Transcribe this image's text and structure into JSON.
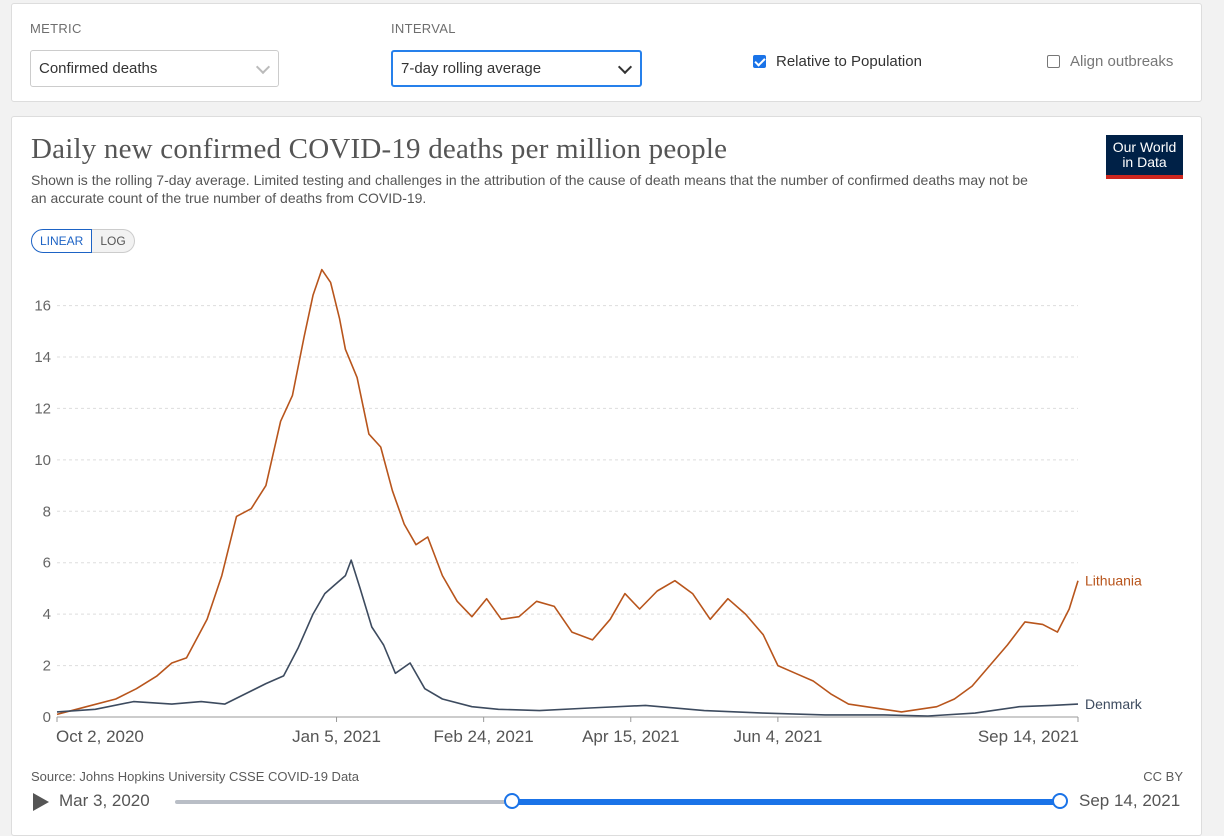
{
  "controls": {
    "metric_label": "METRIC",
    "metric_value": "Confirmed deaths",
    "interval_label": "INTERVAL",
    "interval_value": "7-day rolling average",
    "relative_label": "Relative to Population",
    "relative_checked": true,
    "align_label": "Align outbreaks",
    "align_checked": false
  },
  "chart": {
    "title": "Daily new confirmed COVID-19 deaths per million people",
    "subtitle": "Shown is the rolling 7-day average. Limited testing and challenges in the attribution of the cause of death means that the number of confirmed deaths may not be an accurate count of the true number of deaths from COVID-19.",
    "logo_line1": "Our World",
    "logo_line2": "in Data",
    "scale_linear": "LINEAR",
    "scale_log": "LOG",
    "source": "Source: Johns Hopkins University CSSE COVID-19 Data",
    "license": "CC BY"
  },
  "timeline": {
    "start_label": "Mar 3, 2020",
    "end_label": "Sep 14, 2021"
  },
  "colors": {
    "lithuania": "#b8551c",
    "denmark": "#3d4b5f",
    "accent": "#1a73e8"
  },
  "chart_data": {
    "type": "line",
    "title": "Daily new confirmed COVID-19 deaths per million people",
    "xlabel": "",
    "ylabel": "",
    "ylim": [
      0,
      17.5
    ],
    "yticks": [
      0,
      2,
      4,
      6,
      8,
      10,
      12,
      14,
      16
    ],
    "xlim": [
      "2020-10-02",
      "2021-09-14"
    ],
    "xticks": [
      "Oct 2, 2020",
      "Jan 5, 2021",
      "Feb 24, 2021",
      "Apr 15, 2021",
      "Jun 4, 2021",
      "Sep 14, 2021"
    ],
    "x_tick_dates": [
      "2020-10-02",
      "2021-01-05",
      "2021-02-24",
      "2021-04-15",
      "2021-06-04",
      "2021-09-14"
    ],
    "grid": true,
    "series": [
      {
        "name": "Lithuania",
        "color": "#b8551c",
        "points": [
          [
            "2020-10-02",
            0.1
          ],
          [
            "2020-10-12",
            0.4
          ],
          [
            "2020-10-22",
            0.7
          ],
          [
            "2020-10-29",
            1.1
          ],
          [
            "2020-11-05",
            1.6
          ],
          [
            "2020-11-10",
            2.1
          ],
          [
            "2020-11-15",
            2.3
          ],
          [
            "2020-11-22",
            3.8
          ],
          [
            "2020-11-27",
            5.5
          ],
          [
            "2020-12-02",
            7.8
          ],
          [
            "2020-12-07",
            8.1
          ],
          [
            "2020-12-12",
            9.0
          ],
          [
            "2020-12-17",
            11.5
          ],
          [
            "2020-12-21",
            12.5
          ],
          [
            "2020-12-25",
            14.8
          ],
          [
            "2020-12-28",
            16.4
          ],
          [
            "2020-12-31",
            17.4
          ],
          [
            "2021-01-03",
            16.9
          ],
          [
            "2021-01-06",
            15.5
          ],
          [
            "2021-01-08",
            14.3
          ],
          [
            "2021-01-12",
            13.2
          ],
          [
            "2021-01-16",
            11.0
          ],
          [
            "2021-01-20",
            10.5
          ],
          [
            "2021-01-24",
            8.8
          ],
          [
            "2021-01-28",
            7.5
          ],
          [
            "2021-02-01",
            6.7
          ],
          [
            "2021-02-05",
            7.0
          ],
          [
            "2021-02-10",
            5.5
          ],
          [
            "2021-02-15",
            4.5
          ],
          [
            "2021-02-20",
            3.9
          ],
          [
            "2021-02-25",
            4.6
          ],
          [
            "2021-03-02",
            3.8
          ],
          [
            "2021-03-08",
            3.9
          ],
          [
            "2021-03-14",
            4.5
          ],
          [
            "2021-03-20",
            4.3
          ],
          [
            "2021-03-26",
            3.3
          ],
          [
            "2021-04-02",
            3.0
          ],
          [
            "2021-04-08",
            3.8
          ],
          [
            "2021-04-13",
            4.8
          ],
          [
            "2021-04-18",
            4.2
          ],
          [
            "2021-04-24",
            4.9
          ],
          [
            "2021-04-30",
            5.3
          ],
          [
            "2021-05-06",
            4.8
          ],
          [
            "2021-05-12",
            3.8
          ],
          [
            "2021-05-18",
            4.6
          ],
          [
            "2021-05-24",
            4.0
          ],
          [
            "2021-05-30",
            3.2
          ],
          [
            "2021-06-04",
            2.0
          ],
          [
            "2021-06-10",
            1.7
          ],
          [
            "2021-06-16",
            1.4
          ],
          [
            "2021-06-22",
            0.9
          ],
          [
            "2021-06-28",
            0.5
          ],
          [
            "2021-07-04",
            0.4
          ],
          [
            "2021-07-10",
            0.3
          ],
          [
            "2021-07-16",
            0.2
          ],
          [
            "2021-07-22",
            0.3
          ],
          [
            "2021-07-28",
            0.4
          ],
          [
            "2021-08-03",
            0.7
          ],
          [
            "2021-08-09",
            1.2
          ],
          [
            "2021-08-15",
            2.0
          ],
          [
            "2021-08-21",
            2.8
          ],
          [
            "2021-08-27",
            3.7
          ],
          [
            "2021-09-02",
            3.6
          ],
          [
            "2021-09-07",
            3.3
          ],
          [
            "2021-09-11",
            4.2
          ],
          [
            "2021-09-14",
            5.3
          ]
        ]
      },
      {
        "name": "Denmark",
        "color": "#3d4b5f",
        "points": [
          [
            "2020-10-02",
            0.2
          ],
          [
            "2020-10-15",
            0.3
          ],
          [
            "2020-10-28",
            0.6
          ],
          [
            "2020-11-10",
            0.5
          ],
          [
            "2020-11-20",
            0.6
          ],
          [
            "2020-11-28",
            0.5
          ],
          [
            "2020-12-05",
            0.9
          ],
          [
            "2020-12-12",
            1.3
          ],
          [
            "2020-12-18",
            1.6
          ],
          [
            "2020-12-23",
            2.7
          ],
          [
            "2020-12-28",
            4.0
          ],
          [
            "2021-01-01",
            4.8
          ],
          [
            "2021-01-04",
            5.1
          ],
          [
            "2021-01-08",
            5.5
          ],
          [
            "2021-01-10",
            6.1
          ],
          [
            "2021-01-13",
            5.0
          ],
          [
            "2021-01-17",
            3.5
          ],
          [
            "2021-01-21",
            2.8
          ],
          [
            "2021-01-25",
            1.7
          ],
          [
            "2021-01-30",
            2.1
          ],
          [
            "2021-02-04",
            1.1
          ],
          [
            "2021-02-10",
            0.7
          ],
          [
            "2021-02-20",
            0.4
          ],
          [
            "2021-03-01",
            0.3
          ],
          [
            "2021-03-15",
            0.25
          ],
          [
            "2021-04-01",
            0.35
          ],
          [
            "2021-04-20",
            0.45
          ],
          [
            "2021-05-10",
            0.25
          ],
          [
            "2021-05-30",
            0.15
          ],
          [
            "2021-06-20",
            0.08
          ],
          [
            "2021-07-10",
            0.08
          ],
          [
            "2021-07-25",
            0.04
          ],
          [
            "2021-08-10",
            0.15
          ],
          [
            "2021-08-25",
            0.4
          ],
          [
            "2021-09-05",
            0.45
          ],
          [
            "2021-09-14",
            0.5
          ]
        ]
      }
    ]
  }
}
